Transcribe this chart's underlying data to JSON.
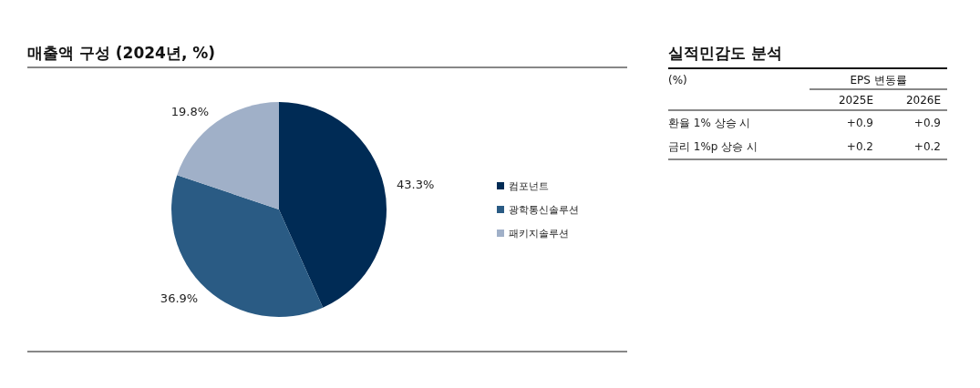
{
  "chart_data": [
    {
      "type": "pie",
      "title": "매출액 구성 (2024년, %)",
      "categories": [
        "컴포넌트",
        "광학통신솔루션",
        "패키지솔루션"
      ],
      "values": [
        43.3,
        36.9,
        19.8
      ],
      "colors": [
        "#002b55",
        "#2a5b84",
        "#a0b0c8"
      ],
      "value_labels": [
        "43.3%",
        "36.9%",
        "19.8%"
      ],
      "legend": "right"
    },
    {
      "type": "other",
      "title": "실적민감도 분석",
      "ylabel": "(%)",
      "xlabel": "EPS 변동률",
      "categories": [
        "2025E",
        "2026E"
      ],
      "y_categories": [
        "환율 1% 상승 시",
        "금리 1%p 상승 시"
      ],
      "cell_labels": [
        [
          "+0.9",
          "+0.9"
        ],
        [
          "+0.2",
          "+0.2"
        ]
      ]
    }
  ]
}
